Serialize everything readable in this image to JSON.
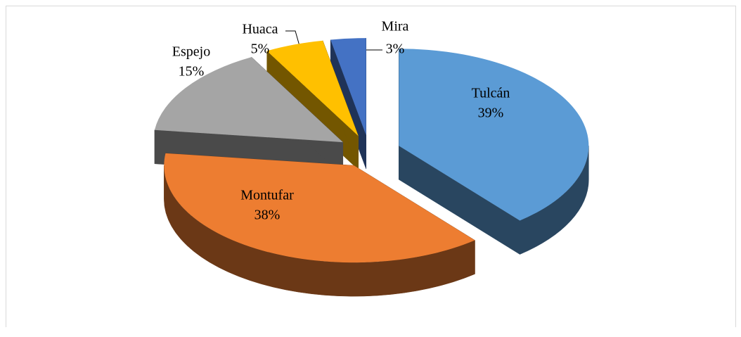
{
  "chart_data": {
    "type": "pie3d",
    "categories": [
      "Tulcán",
      "Montufar",
      "Espejo",
      "Huaca",
      "Mira"
    ],
    "values": [
      39,
      38,
      15,
      5,
      3
    ],
    "value_labels": [
      "39%",
      "38%",
      "15%",
      "5%",
      "3%"
    ],
    "colors": [
      "#5b9bd5",
      "#ed7d31",
      "#a5a5a5",
      "#ffc000",
      "#4472c4"
    ]
  }
}
